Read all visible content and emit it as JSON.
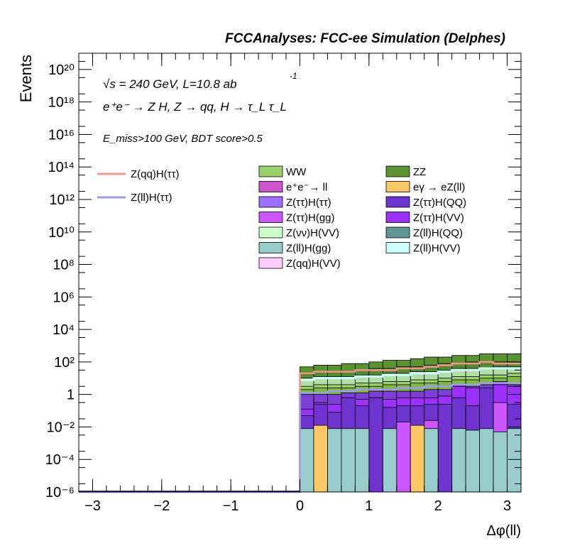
{
  "chart_data": {
    "type": "histogram-stacked",
    "title": "FCCAnalyses: FCC-ee Simulation (Delphes)",
    "annotations": {
      "line1": "√s = 240 GeV, L=10.8 ab",
      "line1_sup": "-1",
      "line2": "e⁺e⁻ → Z H, Z → qq, H → τ_L τ_L",
      "line3": "E_miss>100 GeV, BDT score>0.5"
    },
    "xlabel": "Δφ(ll)",
    "ylabel": "Events",
    "yscale": "log",
    "xlim": [
      -3.2,
      3.2
    ],
    "ylim_exp": [
      -6,
      21
    ],
    "x_ticks": [
      "−3",
      "−2",
      "−1",
      "0",
      "1",
      "2",
      "3"
    ],
    "x_tick_values": [
      -3,
      -2,
      -1,
      0,
      1,
      2,
      3
    ],
    "y_ticks": [
      "10⁻⁶",
      "10⁻⁴",
      "10⁻²",
      "1",
      "10²",
      "10⁴",
      "10⁶",
      "10⁸",
      "10¹⁰",
      "10¹²",
      "10¹⁴",
      "10¹⁶",
      "10¹⁸",
      "10²⁰"
    ],
    "y_tick_exps": [
      -6,
      -4,
      -2,
      0,
      2,
      4,
      6,
      8,
      10,
      12,
      14,
      16,
      18,
      20
    ],
    "bins": [
      0.0,
      0.2,
      0.4,
      0.6,
      0.8,
      1.0,
      1.2,
      1.4,
      1.6,
      1.8,
      2.0,
      2.2,
      2.4,
      2.6,
      2.8,
      3.0,
      3.2
    ],
    "stack_boundaries_log10": [
      [
        -1.3,
        -0.6,
        -1.1,
        -0.2,
        -0.7,
        -0.2,
        -0.8,
        -0.7,
        -0.7,
        -0.6,
        -0.6,
        -0.2,
        -0.7,
        0.4,
        -0.6,
        -0.6
      ],
      [
        -0.9,
        -0.5,
        -0.6,
        -0.3,
        -0.3,
        -0.2,
        -0.3,
        -0.2,
        -0.2,
        -0.2,
        -0.1,
        0.5,
        0.4,
        0.1,
        0.6,
        0.5
      ],
      [
        0.0,
        0.0,
        0.0,
        0.1,
        0.1,
        0.2,
        0.2,
        0.2,
        0.2,
        0.3,
        0.3,
        0.6,
        0.5,
        0.6,
        0.8,
        0.6
      ],
      [
        0.3,
        0.4,
        0.4,
        0.4,
        0.5,
        0.5,
        0.6,
        0.6,
        0.7,
        0.7,
        0.8,
        0.9,
        0.9,
        1.0,
        1.0,
        1.1
      ],
      [
        0.5,
        0.6,
        0.6,
        0.6,
        0.7,
        0.7,
        0.8,
        0.8,
        0.9,
        0.9,
        1.0,
        1.1,
        1.1,
        1.2,
        1.2,
        1.3
      ],
      [
        1.0,
        1.1,
        1.1,
        1.1,
        1.2,
        1.2,
        1.3,
        1.3,
        1.4,
        1.4,
        1.5,
        1.6,
        1.6,
        1.6,
        1.7,
        1.7
      ],
      [
        1.3,
        1.4,
        1.4,
        1.4,
        1.5,
        1.6,
        1.6,
        1.7,
        1.7,
        1.8,
        1.9,
        1.9,
        2.0,
        2.0,
        2.0,
        2.0
      ],
      [
        1.7,
        1.8,
        1.8,
        1.9,
        1.9,
        2.0,
        2.1,
        2.1,
        2.2,
        2.3,
        2.3,
        2.4,
        2.4,
        2.5,
        2.5,
        2.5
      ]
    ],
    "stack_fills": [
      "#6f33cf",
      "#9b30ff",
      "#7d3fd6",
      "#80b840",
      "#9bd16d",
      "#b0e0a8",
      "#558b2f",
      "#5a9330"
    ],
    "light_blue_log10": [
      0.9,
      1.0,
      1.0,
      1.0,
      1.1,
      1.1,
      1.2,
      1.2,
      1.3,
      1.3,
      1.4,
      1.5,
      1.5,
      1.6,
      1.6,
      1.6
    ],
    "teal_log10": [
      -2.1,
      -6,
      -2.1,
      -2.1,
      -2.1,
      -6,
      -2.1,
      -6,
      -6,
      -2.1,
      -6,
      -2.1,
      -2.2,
      -2.1,
      -2.3,
      -2.1
    ],
    "orange_log10": [
      -6,
      -1.9,
      -6,
      -6,
      -6,
      -6,
      -6,
      -6,
      -1.9,
      -6,
      -6,
      -6,
      -6,
      -6,
      -6,
      -6
    ],
    "magenta_log10": [
      -6,
      -6,
      -6,
      -6,
      -6,
      -6,
      -6,
      -1.7,
      -6,
      -1.6,
      -6,
      -6,
      -6,
      -6,
      -0.5,
      -6
    ],
    "signal_lines": [
      {
        "name": "Z(qq)H(ττ)",
        "color": "#f5938f",
        "values_log10": [
          1.3,
          1.4,
          1.4,
          1.4,
          1.5,
          1.5,
          1.5,
          1.6,
          1.6,
          1.7,
          1.8,
          1.9,
          1.9,
          2.0,
          1.9,
          1.9
        ]
      },
      {
        "name": "Z(ll)H(ττ)",
        "color": "#9c9cf5",
        "values_log10": [
          0.1,
          0.1,
          0.2,
          0.2,
          0.3,
          0.3,
          0.3,
          0.4,
          0.4,
          0.5,
          0.5,
          0.6,
          0.6,
          0.7,
          0.7,
          0.7
        ]
      }
    ],
    "legend_lines": [
      {
        "label": "Z(qq)H(ττ)",
        "color": "#f5938f"
      },
      {
        "label": "Z(ll)H(ττ)",
        "color": "#9c9cf5"
      }
    ],
    "legend_boxes": [
      {
        "label": "WW",
        "color": "#9bd16d"
      },
      {
        "label": "ZZ",
        "color": "#5a9330"
      },
      {
        "label": "e⁺e⁻→ ll",
        "color": "#cc55cc"
      },
      {
        "label": "eγ → eZ(ll)",
        "color": "#fdc966"
      },
      {
        "label": "Z(ττ)H(ττ)",
        "color": "#9d70ff"
      },
      {
        "label": "Z(ττ)H(QQ)",
        "color": "#6f33cf"
      },
      {
        "label": "Z(ττ)H(gg)",
        "color": "#cc55ff"
      },
      {
        "label": "Z(ττ)H(VV)",
        "color": "#9b30ff"
      },
      {
        "label": "Z(νν)H(VV)",
        "color": "#ccffcc"
      },
      {
        "label": "Z(ll)H(QQ)",
        "color": "#5f9595"
      },
      {
        "label": "Z(ll)H(gg)",
        "color": "#99cccc"
      },
      {
        "label": "Z(ll)H(VV)",
        "color": "#ccffff"
      },
      {
        "label": "Z(qq)H(VV)",
        "color": "#ffccff"
      }
    ]
  }
}
